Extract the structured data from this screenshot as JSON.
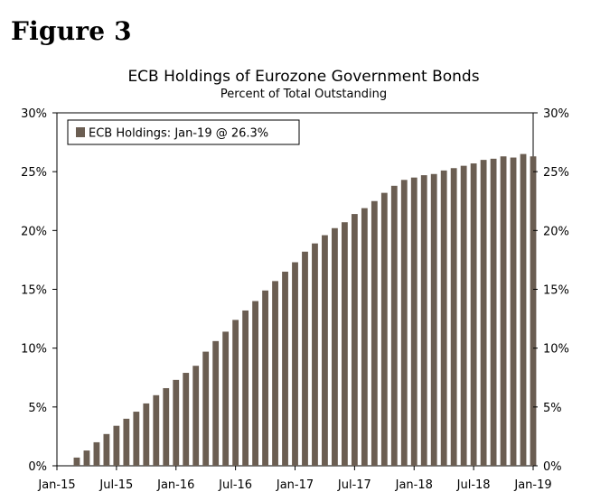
{
  "figure_label": "Figure 3",
  "colors": {
    "bar": "#6b5e52",
    "axis": "#000000",
    "background": "#ffffff"
  },
  "chart_data": {
    "type": "bar",
    "title": "ECB Holdings of Eurozone Government Bonds",
    "subtitle": "Percent of Total Outstanding",
    "xlabel": "",
    "ylabel": "",
    "ylim": [
      0,
      30
    ],
    "y_ticks": [
      0,
      5,
      10,
      15,
      20,
      25,
      30
    ],
    "y_tick_labels": [
      "0%",
      "5%",
      "10%",
      "15%",
      "20%",
      "25%",
      "30%"
    ],
    "x_tick_labels": [
      "Jan-15",
      "Jul-15",
      "Jan-16",
      "Jul-16",
      "Jan-17",
      "Jul-17",
      "Jan-18",
      "Jul-18",
      "Jan-19"
    ],
    "grid": false,
    "legend_position": "top-left",
    "series": [
      {
        "name": "ECB Holdings: Jan-19 @ 26.3%",
        "categories": [
          "Mar-15",
          "Apr-15",
          "May-15",
          "Jun-15",
          "Jul-15",
          "Aug-15",
          "Sep-15",
          "Oct-15",
          "Nov-15",
          "Dec-15",
          "Jan-16",
          "Feb-16",
          "Mar-16",
          "Apr-16",
          "May-16",
          "Jun-16",
          "Jul-16",
          "Aug-16",
          "Sep-16",
          "Oct-16",
          "Nov-16",
          "Dec-16",
          "Jan-17",
          "Feb-17",
          "Mar-17",
          "Apr-17",
          "May-17",
          "Jun-17",
          "Jul-17",
          "Aug-17",
          "Sep-17",
          "Oct-17",
          "Nov-17",
          "Dec-17",
          "Jan-18",
          "Feb-18",
          "Mar-18",
          "Apr-18",
          "May-18",
          "Jun-18",
          "Jul-18",
          "Aug-18",
          "Sep-18",
          "Oct-18",
          "Nov-18",
          "Dec-18",
          "Jan-19"
        ],
        "values": [
          0.7,
          1.3,
          2.0,
          2.7,
          3.4,
          4.0,
          4.6,
          5.3,
          6.0,
          6.6,
          7.3,
          7.9,
          8.5,
          9.7,
          10.6,
          11.4,
          12.4,
          13.2,
          14.0,
          14.9,
          15.7,
          16.5,
          17.3,
          18.2,
          18.9,
          19.6,
          20.2,
          20.7,
          21.4,
          21.9,
          22.5,
          23.2,
          23.8,
          24.3,
          24.5,
          24.7,
          24.8,
          25.1,
          25.3,
          25.5,
          25.7,
          26.0,
          26.1,
          26.3,
          26.2,
          26.5,
          26.3
        ]
      }
    ]
  }
}
